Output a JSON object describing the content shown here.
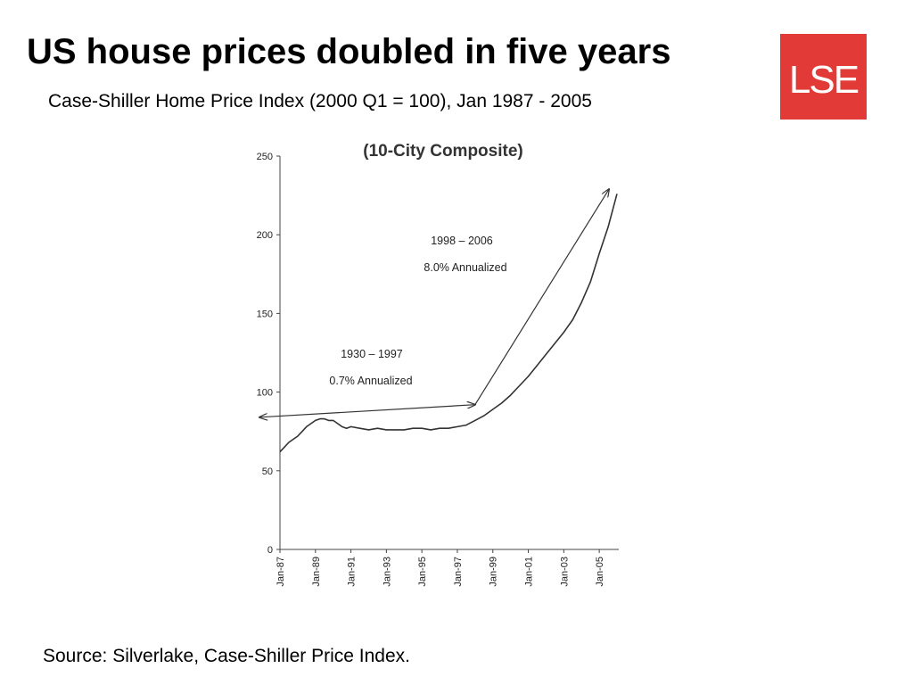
{
  "slide": {
    "title": "US house prices doubled in five years",
    "subtitle": "Case-Shiller Home Price Index (2000 Q1 = 100), Jan 1987 - 2005",
    "source": "Source: Silverlake, Case-Shiller Price Index."
  },
  "logo": {
    "text": "LSE",
    "color": "#e23a36"
  },
  "chart_data": {
    "type": "line",
    "title": "(10-City Composite)",
    "xlabel": "",
    "ylabel": "",
    "ylim": [
      0,
      250
    ],
    "yticks": [
      0,
      50,
      100,
      150,
      200,
      250
    ],
    "xlim": [
      1987.0,
      2006.1
    ],
    "xtick_labels": [
      "Jan-87",
      "Jan-89",
      "Jan-91",
      "Jan-93",
      "Jan-95",
      "Jan-97",
      "Jan-99",
      "Jan-01",
      "Jan-03",
      "Jan-05"
    ],
    "xtick_years": [
      1987,
      1989,
      1991,
      1993,
      1995,
      1997,
      1999,
      2001,
      2003,
      2005
    ],
    "grid": false,
    "line_color": "#333333",
    "series": [
      {
        "x": [
          1987.0,
          1987.25,
          1987.5,
          1987.75,
          1988.0,
          1988.25,
          1988.5,
          1988.75,
          1989.0,
          1989.25,
          1989.5,
          1989.75,
          1990.0,
          1990.25,
          1990.5,
          1990.75,
          1991.0,
          1991.5,
          1992.0,
          1992.5,
          1993.0,
          1993.5,
          1994.0,
          1994.5,
          1995.0,
          1995.5,
          1996.0,
          1996.5,
          1997.0,
          1997.5,
          1998.0,
          1998.5,
          1999.0,
          1999.5,
          2000.0,
          2000.5,
          2001.0,
          2001.5,
          2002.0,
          2002.5,
          2003.0,
          2003.5,
          2004.0,
          2004.5,
          2005.0,
          2005.5,
          2006.0
        ],
        "y": [
          62,
          65,
          68,
          70,
          72,
          75,
          78,
          80,
          82,
          83,
          83,
          82,
          82,
          80,
          78,
          77,
          78,
          77,
          76,
          77,
          76,
          76,
          76,
          77,
          77,
          76,
          77,
          77,
          78,
          79,
          82,
          85,
          89,
          93,
          98,
          104,
          110,
          117,
          124,
          131,
          138,
          146,
          157,
          170,
          188,
          205,
          226
        ]
      }
    ],
    "annotations": [
      {
        "line1": "1998 – 2006",
        "line2": "8.0% Annualized"
      },
      {
        "line1": "1930 – 1997",
        "line2": "0.7% Annualized"
      }
    ],
    "arrows": [
      {
        "x1": 1985.85,
        "y1": 84,
        "x2": 1998.0,
        "y2": 92,
        "head": "both"
      },
      {
        "x1": 1998.0,
        "y1": 92,
        "x2": 2005.55,
        "y2": 229,
        "head": "end"
      }
    ]
  }
}
